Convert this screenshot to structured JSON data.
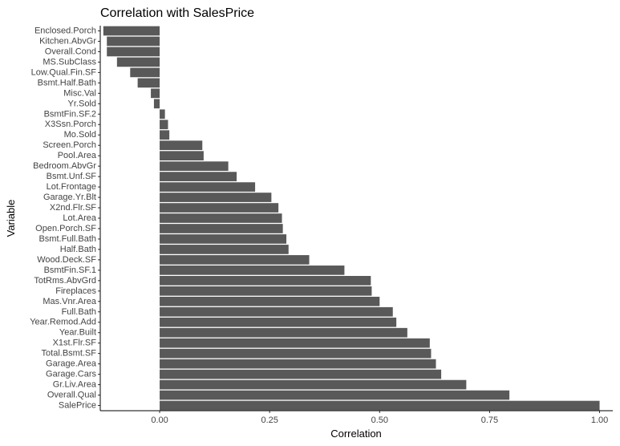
{
  "chart_data": {
    "type": "bar",
    "orientation": "horizontal",
    "title": "Correlation with SalesPrice",
    "xlabel": "Correlation",
    "ylabel": "Variable",
    "xlim": [
      -0.135,
      1.03
    ],
    "xticks": [
      0.0,
      0.25,
      0.5,
      0.75,
      1.0
    ],
    "xtick_labels": [
      "0.00",
      "0.25",
      "0.50",
      "0.75",
      "1.00"
    ],
    "grid": false,
    "bar_color": "#595959",
    "categories": [
      "Enclosed.Porch",
      "Kitchen.AbvGr",
      "Overall.Cond",
      "MS.SubClass",
      "Low.Qual.Fin.SF",
      "Bsmt.Half.Bath",
      "Misc.Val",
      "Yr.Sold",
      "BsmtFin.SF.2",
      "X3Ssn.Porch",
      "Mo.Sold",
      "Screen.Porch",
      "Pool.Area",
      "Bedroom.AbvGr",
      "Bsmt.Unf.SF",
      "Lot.Frontage",
      "Garage.Yr.Blt",
      "X2nd.Flr.SF",
      "Lot.Area",
      "Open.Porch.SF",
      "Bsmt.Full.Bath",
      "Half.Bath",
      "Wood.Deck.SF",
      "BsmtFin.SF.1",
      "TotRms.AbvGrd",
      "Fireplaces",
      "Mas.Vnr.Area",
      "Full.Bath",
      "Year.Remod.Add",
      "Year.Built",
      "X1st.Flr.SF",
      "Total.Bsmt.SF",
      "Garage.Area",
      "Garage.Cars",
      "Gr.Liv.Area",
      "Overall.Qual",
      "SalePrice"
    ],
    "values": [
      -0.128,
      -0.12,
      -0.12,
      -0.097,
      -0.067,
      -0.05,
      -0.02,
      -0.013,
      0.012,
      0.019,
      0.022,
      0.097,
      0.1,
      0.156,
      0.175,
      0.217,
      0.254,
      0.27,
      0.278,
      0.28,
      0.288,
      0.293,
      0.34,
      0.42,
      0.48,
      0.482,
      0.5,
      0.53,
      0.538,
      0.563,
      0.614,
      0.617,
      0.628,
      0.64,
      0.697,
      0.795,
      1.0
    ]
  }
}
